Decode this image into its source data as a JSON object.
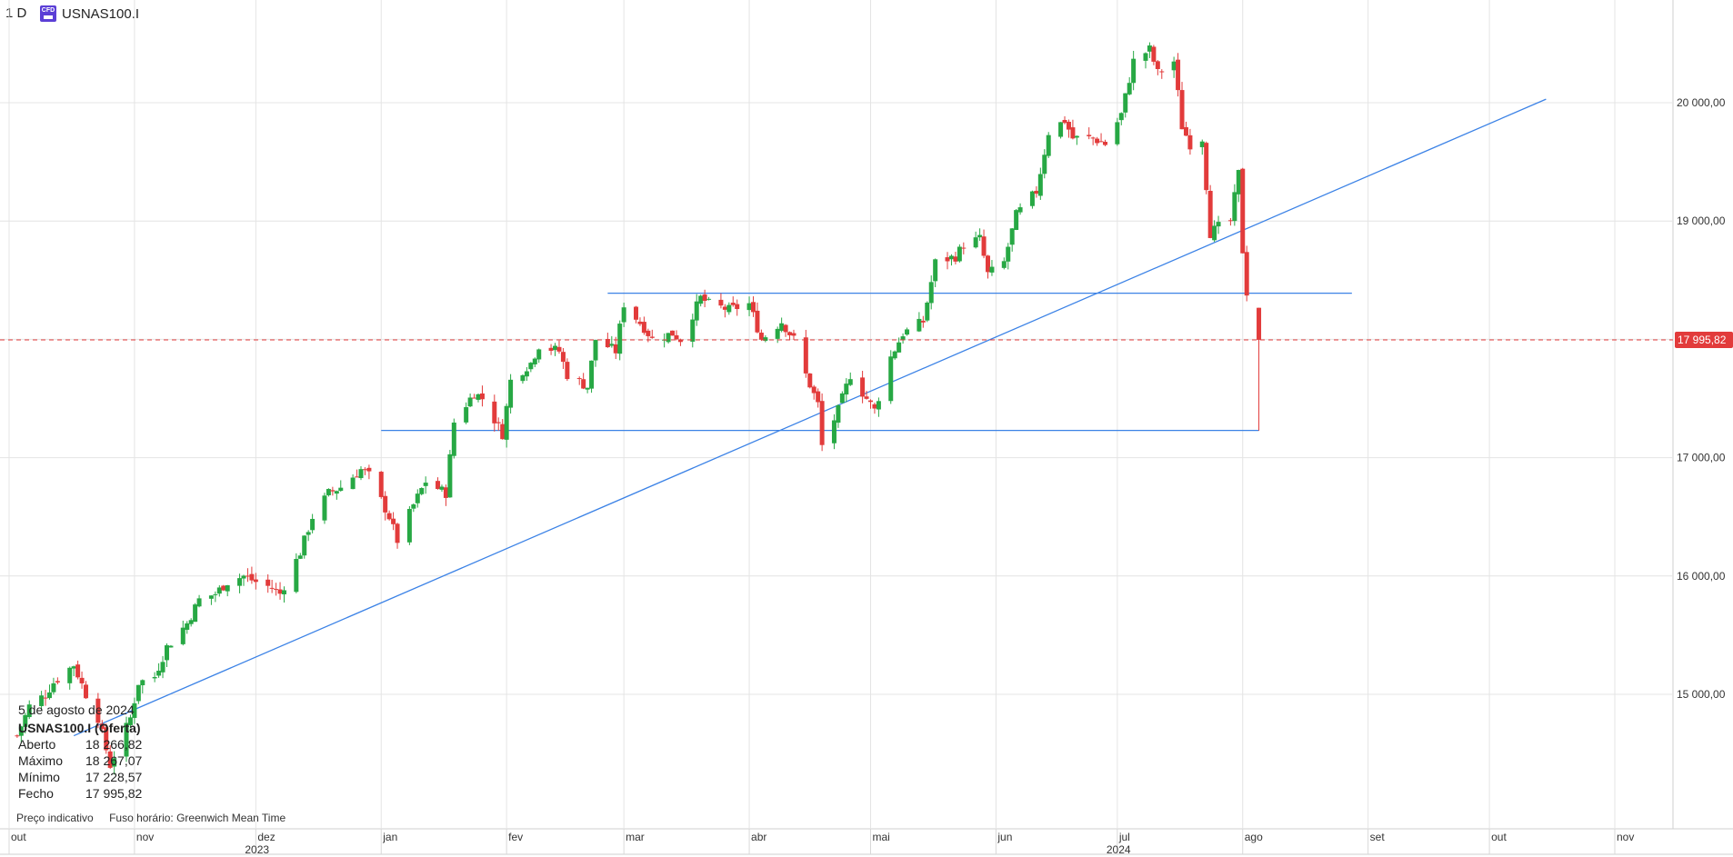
{
  "header": {
    "interval": "1 D",
    "symbol": "USNAS100.I",
    "badge": "CFD"
  },
  "info_panel": {
    "date": "5 de agosto de 2024",
    "symbol": "USNAS100.I (Oferta)",
    "rows": [
      {
        "label": "Aberto",
        "value": "18 266,82"
      },
      {
        "label": "Máximo",
        "value": "18 267,07"
      },
      {
        "label": "Mínimo",
        "value": "17 228,57"
      },
      {
        "label": "Fecho",
        "value": "17 995,82"
      }
    ]
  },
  "footer": {
    "price_note": "Preço indicativo",
    "timezone": "Fuso horário: Greenwich Mean Time"
  },
  "colors": {
    "up": "#27a844",
    "down": "#e23b3b",
    "trendline": "#3b82e6",
    "grid": "#e4e4e4",
    "last_price": "#e23b3b"
  },
  "chart_data": {
    "type": "candlestick",
    "title": "",
    "symbol": "USNAS100.I",
    "timeframe": "1 D",
    "x_range": [
      "2023-10-01",
      "2024-11-30"
    ],
    "ylim": [
      14000,
      20900
    ],
    "y_ticks": [
      15000,
      16000,
      17000,
      18000,
      19000,
      20000
    ],
    "y_tick_labels": [
      "15 000,00",
      "16 000,00",
      "17 000,00",
      "18 000,00",
      "19 000,00",
      "20 000,00"
    ],
    "x_ticks": [
      {
        "date": "2023-10-01",
        "label": "out"
      },
      {
        "date": "2023-11-01",
        "label": "nov"
      },
      {
        "date": "2023-12-01",
        "label": "dez"
      },
      {
        "date": "2024-01-01",
        "label": "jan"
      },
      {
        "date": "2024-02-01",
        "label": "fev"
      },
      {
        "date": "2024-03-01",
        "label": "mar"
      },
      {
        "date": "2024-04-01",
        "label": "abr"
      },
      {
        "date": "2024-05-01",
        "label": "mai"
      },
      {
        "date": "2024-06-01",
        "label": "jun"
      },
      {
        "date": "2024-07-01",
        "label": "jul"
      },
      {
        "date": "2024-08-01",
        "label": "ago"
      },
      {
        "date": "2024-09-01",
        "label": "set"
      },
      {
        "date": "2024-10-01",
        "label": "out"
      },
      {
        "date": "2024-11-01",
        "label": "nov"
      }
    ],
    "year_labels": [
      {
        "date": "2023-12-01",
        "label": "2023"
      },
      {
        "date": "2024-07-01",
        "label": "2024"
      }
    ],
    "close_path": [
      [
        "2023-10-03",
        14650
      ],
      [
        "2023-10-06",
        14900
      ],
      [
        "2023-10-10",
        15000
      ],
      [
        "2023-10-12",
        15100
      ],
      [
        "2023-10-17",
        15250
      ],
      [
        "2023-10-20",
        15000
      ],
      [
        "2023-10-23",
        14800
      ],
      [
        "2023-10-26",
        14400
      ],
      [
        "2023-10-31",
        14800
      ],
      [
        "2023-11-02",
        15100
      ],
      [
        "2023-11-06",
        15150
      ],
      [
        "2023-11-09",
        15400
      ],
      [
        "2023-11-14",
        15600
      ],
      [
        "2023-11-17",
        15800
      ],
      [
        "2023-11-21",
        15850
      ],
      [
        "2023-11-24",
        15950
      ],
      [
        "2023-11-28",
        16000
      ],
      [
        "2023-12-01",
        15950
      ],
      [
        "2023-12-05",
        15900
      ],
      [
        "2023-12-07",
        15850
      ],
      [
        "2023-12-12",
        16200
      ],
      [
        "2023-12-15",
        16500
      ],
      [
        "2023-12-19",
        16700
      ],
      [
        "2023-12-22",
        16750
      ],
      [
        "2023-12-27",
        16900
      ],
      [
        "2023-12-29",
        16850
      ],
      [
        "2024-01-03",
        16500
      ],
      [
        "2024-01-05",
        16300
      ],
      [
        "2024-01-09",
        16600
      ],
      [
        "2024-01-12",
        16800
      ],
      [
        "2024-01-17",
        16700
      ],
      [
        "2024-01-19",
        17300
      ],
      [
        "2024-01-24",
        17550
      ],
      [
        "2024-01-26",
        17500
      ],
      [
        "2024-01-31",
        17200
      ],
      [
        "2024-02-02",
        17650
      ],
      [
        "2024-02-07",
        17800
      ],
      [
        "2024-02-09",
        17950
      ],
      [
        "2024-02-14",
        17900
      ],
      [
        "2024-02-16",
        17700
      ],
      [
        "2024-02-21",
        17600
      ],
      [
        "2024-02-23",
        18000
      ],
      [
        "2024-02-28",
        17900
      ],
      [
        "2024-03-01",
        18300
      ],
      [
        "2024-03-06",
        18100
      ],
      [
        "2024-03-08",
        18000
      ],
      [
        "2024-03-13",
        18050
      ],
      [
        "2024-03-15",
        18000
      ],
      [
        "2024-03-20",
        18350
      ],
      [
        "2024-03-22",
        18300
      ],
      [
        "2024-03-27",
        18250
      ],
      [
        "2024-04-01",
        18300
      ],
      [
        "2024-04-04",
        18000
      ],
      [
        "2024-04-09",
        18150
      ],
      [
        "2024-04-12",
        18000
      ],
      [
        "2024-04-15",
        17700
      ],
      [
        "2024-04-18",
        17450
      ],
      [
        "2024-04-19",
        17100
      ],
      [
        "2024-04-23",
        17400
      ],
      [
        "2024-04-26",
        17700
      ],
      [
        "2024-04-30",
        17500
      ],
      [
        "2024-05-02",
        17400
      ],
      [
        "2024-05-06",
        17850
      ],
      [
        "2024-05-09",
        18050
      ],
      [
        "2024-05-14",
        18150
      ],
      [
        "2024-05-17",
        18650
      ],
      [
        "2024-05-22",
        18700
      ],
      [
        "2024-05-24",
        18800
      ],
      [
        "2024-05-28",
        18850
      ],
      [
        "2024-05-30",
        18550
      ],
      [
        "2024-06-03",
        18650
      ],
      [
        "2024-06-06",
        19050
      ],
      [
        "2024-06-11",
        19250
      ],
      [
        "2024-06-14",
        19750
      ],
      [
        "2024-06-18",
        19850
      ],
      [
        "2024-06-20",
        19700
      ],
      [
        "2024-06-25",
        19700
      ],
      [
        "2024-06-28",
        19650
      ],
      [
        "2024-07-02",
        19900
      ],
      [
        "2024-07-05",
        20350
      ],
      [
        "2024-07-09",
        20450
      ],
      [
        "2024-07-11",
        20250
      ],
      [
        "2024-07-15",
        20350
      ],
      [
        "2024-07-17",
        19800
      ],
      [
        "2024-07-19",
        19650
      ],
      [
        "2024-07-22",
        19700
      ],
      [
        "2024-07-24",
        18900
      ],
      [
        "2024-07-26",
        18950
      ],
      [
        "2024-07-29",
        19000
      ],
      [
        "2024-07-31",
        19400
      ],
      [
        "2024-08-01",
        18750
      ],
      [
        "2024-08-02",
        18400
      ]
    ],
    "last_candle": {
      "date": "2024-08-05",
      "open": 18266.82,
      "high": 18267.07,
      "low": 17228.57,
      "close": 17995.82
    },
    "last_price": 17995.82,
    "last_price_label": "17 995,82",
    "drawings": [
      {
        "type": "trendline",
        "from": [
          "2023-10-17",
          14650
        ],
        "to": [
          "2024-10-15",
          20030
        ]
      },
      {
        "type": "horizontal",
        "from": [
          "2024-02-26",
          18390
        ],
        "to": [
          "2024-08-28",
          18390
        ]
      },
      {
        "type": "horizontal",
        "from": [
          "2024-01-01",
          17230
        ],
        "to": [
          "2024-08-05",
          17230
        ]
      }
    ],
    "grid": true,
    "legend": "none"
  }
}
